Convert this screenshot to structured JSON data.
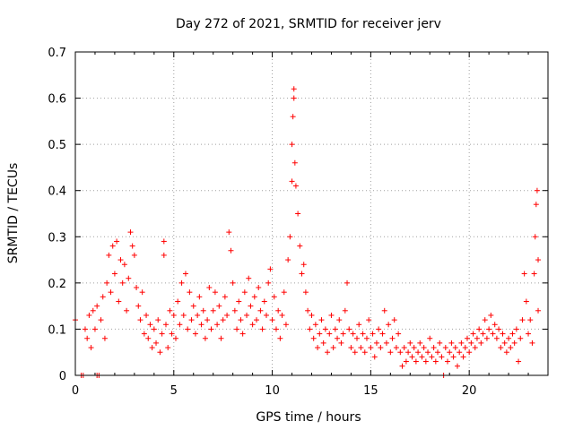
{
  "chart_data": {
    "type": "scatter",
    "title": "Day 272 of 2021, SRMTID for receiver jerv",
    "xlabel": "GPS time / hours",
    "ylabel": "SRMTID / TECUs",
    "xlim": [
      0,
      24
    ],
    "ylim": [
      0,
      0.7
    ],
    "grid": true,
    "marker": "+",
    "color": "#ff0000",
    "x_ticks": [
      0,
      5,
      10,
      15,
      20
    ],
    "x_tick_labels": [
      "0",
      "5",
      "10",
      "15",
      "20"
    ],
    "y_ticks": [
      0,
      0.1,
      0.2,
      0.3,
      0.4,
      0.5,
      0.6,
      0.7
    ],
    "y_tick_labels": [
      "0",
      "0.1",
      "0.2",
      "0.3",
      "0.4",
      "0.5",
      "0.6",
      "0.7"
    ],
    "series": [
      {
        "name": "SRMTID",
        "points": [
          [
            0.0,
            0.12
          ],
          [
            0.3,
            0.0
          ],
          [
            0.4,
            0.0
          ],
          [
            0.5,
            0.1
          ],
          [
            0.6,
            0.08
          ],
          [
            0.7,
            0.13
          ],
          [
            0.8,
            0.06
          ],
          [
            0.9,
            0.14
          ],
          [
            1.0,
            0.1
          ],
          [
            1.1,
            0.15
          ],
          [
            1.1,
            0.0
          ],
          [
            1.2,
            0.0
          ],
          [
            1.3,
            0.12
          ],
          [
            1.4,
            0.17
          ],
          [
            1.5,
            0.08
          ],
          [
            1.6,
            0.2
          ],
          [
            1.7,
            0.26
          ],
          [
            1.8,
            0.18
          ],
          [
            1.9,
            0.28
          ],
          [
            2.0,
            0.22
          ],
          [
            2.1,
            0.29
          ],
          [
            2.2,
            0.16
          ],
          [
            2.3,
            0.25
          ],
          [
            2.4,
            0.2
          ],
          [
            2.5,
            0.24
          ],
          [
            2.6,
            0.14
          ],
          [
            2.7,
            0.21
          ],
          [
            2.8,
            0.31
          ],
          [
            2.9,
            0.28
          ],
          [
            3.0,
            0.26
          ],
          [
            3.1,
            0.19
          ],
          [
            3.2,
            0.15
          ],
          [
            3.3,
            0.12
          ],
          [
            3.4,
            0.18
          ],
          [
            3.5,
            0.09
          ],
          [
            3.6,
            0.13
          ],
          [
            3.7,
            0.08
          ],
          [
            3.8,
            0.11
          ],
          [
            3.9,
            0.06
          ],
          [
            4.0,
            0.1
          ],
          [
            4.1,
            0.07
          ],
          [
            4.2,
            0.12
          ],
          [
            4.3,
            0.05
          ],
          [
            4.4,
            0.09
          ],
          [
            4.5,
            0.29
          ],
          [
            4.5,
            0.26
          ],
          [
            4.6,
            0.11
          ],
          [
            4.7,
            0.06
          ],
          [
            4.8,
            0.14
          ],
          [
            4.9,
            0.09
          ],
          [
            5.0,
            0.13
          ],
          [
            5.1,
            0.08
          ],
          [
            5.2,
            0.16
          ],
          [
            5.3,
            0.11
          ],
          [
            5.4,
            0.2
          ],
          [
            5.5,
            0.13
          ],
          [
            5.6,
            0.22
          ],
          [
            5.7,
            0.1
          ],
          [
            5.8,
            0.18
          ],
          [
            5.9,
            0.12
          ],
          [
            6.0,
            0.15
          ],
          [
            6.1,
            0.09
          ],
          [
            6.2,
            0.13
          ],
          [
            6.3,
            0.17
          ],
          [
            6.4,
            0.11
          ],
          [
            6.5,
            0.14
          ],
          [
            6.6,
            0.08
          ],
          [
            6.7,
            0.12
          ],
          [
            6.8,
            0.19
          ],
          [
            6.9,
            0.1
          ],
          [
            7.0,
            0.14
          ],
          [
            7.1,
            0.18
          ],
          [
            7.2,
            0.11
          ],
          [
            7.3,
            0.15
          ],
          [
            7.4,
            0.08
          ],
          [
            7.5,
            0.12
          ],
          [
            7.6,
            0.17
          ],
          [
            7.7,
            0.13
          ],
          [
            7.8,
            0.31
          ],
          [
            7.9,
            0.27
          ],
          [
            8.0,
            0.2
          ],
          [
            8.1,
            0.14
          ],
          [
            8.2,
            0.1
          ],
          [
            8.3,
            0.16
          ],
          [
            8.4,
            0.12
          ],
          [
            8.5,
            0.09
          ],
          [
            8.6,
            0.18
          ],
          [
            8.7,
            0.13
          ],
          [
            8.8,
            0.21
          ],
          [
            8.9,
            0.15
          ],
          [
            9.0,
            0.11
          ],
          [
            9.1,
            0.17
          ],
          [
            9.2,
            0.12
          ],
          [
            9.3,
            0.19
          ],
          [
            9.4,
            0.14
          ],
          [
            9.5,
            0.1
          ],
          [
            9.6,
            0.16
          ],
          [
            9.7,
            0.13
          ],
          [
            9.8,
            0.2
          ],
          [
            9.9,
            0.23
          ],
          [
            10.0,
            0.12
          ],
          [
            10.1,
            0.17
          ],
          [
            10.2,
            0.1
          ],
          [
            10.3,
            0.14
          ],
          [
            10.4,
            0.08
          ],
          [
            10.5,
            0.13
          ],
          [
            10.6,
            0.18
          ],
          [
            10.7,
            0.11
          ],
          [
            10.8,
            0.25
          ],
          [
            10.9,
            0.3
          ],
          [
            11.0,
            0.42
          ],
          [
            11.0,
            0.5
          ],
          [
            11.05,
            0.56
          ],
          [
            11.1,
            0.62
          ],
          [
            11.1,
            0.6
          ],
          [
            11.15,
            0.46
          ],
          [
            11.2,
            0.41
          ],
          [
            11.3,
            0.35
          ],
          [
            11.4,
            0.28
          ],
          [
            11.5,
            0.22
          ],
          [
            11.6,
            0.24
          ],
          [
            11.7,
            0.18
          ],
          [
            11.8,
            0.14
          ],
          [
            11.9,
            0.1
          ],
          [
            12.0,
            0.13
          ],
          [
            12.1,
            0.08
          ],
          [
            12.2,
            0.11
          ],
          [
            12.3,
            0.06
          ],
          [
            12.4,
            0.09
          ],
          [
            12.5,
            0.12
          ],
          [
            12.6,
            0.07
          ],
          [
            12.7,
            0.1
          ],
          [
            12.8,
            0.05
          ],
          [
            12.9,
            0.09
          ],
          [
            13.0,
            0.13
          ],
          [
            13.1,
            0.06
          ],
          [
            13.2,
            0.1
          ],
          [
            13.3,
            0.08
          ],
          [
            13.4,
            0.12
          ],
          [
            13.5,
            0.07
          ],
          [
            13.6,
            0.09
          ],
          [
            13.7,
            0.14
          ],
          [
            13.8,
            0.2
          ],
          [
            13.9,
            0.1
          ],
          [
            14.0,
            0.06
          ],
          [
            14.1,
            0.09
          ],
          [
            14.2,
            0.05
          ],
          [
            14.3,
            0.08
          ],
          [
            14.4,
            0.11
          ],
          [
            14.5,
            0.06
          ],
          [
            14.6,
            0.09
          ],
          [
            14.7,
            0.05
          ],
          [
            14.8,
            0.08
          ],
          [
            14.9,
            0.12
          ],
          [
            15.0,
            0.06
          ],
          [
            15.1,
            0.09
          ],
          [
            15.2,
            0.04
          ],
          [
            15.3,
            0.07
          ],
          [
            15.4,
            0.1
          ],
          [
            15.5,
            0.06
          ],
          [
            15.6,
            0.09
          ],
          [
            15.7,
            0.14
          ],
          [
            15.8,
            0.07
          ],
          [
            15.9,
            0.11
          ],
          [
            16.0,
            0.05
          ],
          [
            16.1,
            0.08
          ],
          [
            16.2,
            0.12
          ],
          [
            16.3,
            0.06
          ],
          [
            16.4,
            0.09
          ],
          [
            16.5,
            0.05
          ],
          [
            16.6,
            0.02
          ],
          [
            16.7,
            0.06
          ],
          [
            16.8,
            0.03
          ],
          [
            16.9,
            0.05
          ],
          [
            17.0,
            0.07
          ],
          [
            17.1,
            0.04
          ],
          [
            17.2,
            0.06
          ],
          [
            17.3,
            0.03
          ],
          [
            17.4,
            0.05
          ],
          [
            17.5,
            0.07
          ],
          [
            17.6,
            0.04
          ],
          [
            17.7,
            0.06
          ],
          [
            17.8,
            0.03
          ],
          [
            17.9,
            0.05
          ],
          [
            18.0,
            0.08
          ],
          [
            18.1,
            0.04
          ],
          [
            18.2,
            0.06
          ],
          [
            18.3,
            0.03
          ],
          [
            18.4,
            0.05
          ],
          [
            18.5,
            0.07
          ],
          [
            18.6,
            0.04
          ],
          [
            18.7,
            0.0
          ],
          [
            18.8,
            0.06
          ],
          [
            18.9,
            0.03
          ],
          [
            19.0,
            0.05
          ],
          [
            19.1,
            0.07
          ],
          [
            19.2,
            0.04
          ],
          [
            19.3,
            0.06
          ],
          [
            19.4,
            0.02
          ],
          [
            19.5,
            0.05
          ],
          [
            19.6,
            0.07
          ],
          [
            19.7,
            0.04
          ],
          [
            19.8,
            0.06
          ],
          [
            19.9,
            0.08
          ],
          [
            20.0,
            0.05
          ],
          [
            20.1,
            0.07
          ],
          [
            20.2,
            0.09
          ],
          [
            20.3,
            0.06
          ],
          [
            20.4,
            0.08
          ],
          [
            20.5,
            0.1
          ],
          [
            20.6,
            0.07
          ],
          [
            20.7,
            0.09
          ],
          [
            20.8,
            0.12
          ],
          [
            20.9,
            0.08
          ],
          [
            21.0,
            0.1
          ],
          [
            21.1,
            0.13
          ],
          [
            21.2,
            0.09
          ],
          [
            21.3,
            0.11
          ],
          [
            21.4,
            0.08
          ],
          [
            21.5,
            0.1
          ],
          [
            21.6,
            0.06
          ],
          [
            21.7,
            0.09
          ],
          [
            21.8,
            0.07
          ],
          [
            21.9,
            0.05
          ],
          [
            22.0,
            0.08
          ],
          [
            22.1,
            0.06
          ],
          [
            22.2,
            0.09
          ],
          [
            22.3,
            0.07
          ],
          [
            22.4,
            0.1
          ],
          [
            22.5,
            0.03
          ],
          [
            22.6,
            0.08
          ],
          [
            22.7,
            0.12
          ],
          [
            22.8,
            0.22
          ],
          [
            22.9,
            0.16
          ],
          [
            23.0,
            0.09
          ],
          [
            23.1,
            0.12
          ],
          [
            23.2,
            0.07
          ],
          [
            23.3,
            0.22
          ],
          [
            23.35,
            0.3
          ],
          [
            23.4,
            0.37
          ],
          [
            23.45,
            0.4
          ],
          [
            23.5,
            0.25
          ],
          [
            23.5,
            0.14
          ]
        ]
      }
    ]
  }
}
